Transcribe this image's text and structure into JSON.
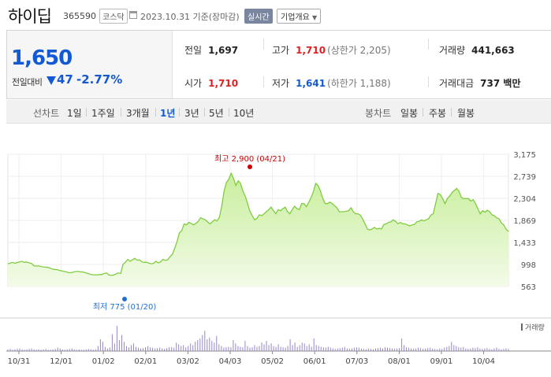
{
  "header": {
    "stock_name": "하이딥",
    "stock_code": "365590",
    "market_badge": "코스닥",
    "date_text": "2023.10.31 기준(장마감)",
    "realtime_label": "실시간",
    "corp_info_label": "기업개요"
  },
  "summary": {
    "price": "1,650",
    "prev_label": "전일대비",
    "change": "47",
    "change_pct": "-2.77%",
    "prev_close": {
      "label": "전일",
      "value": "1,697"
    },
    "high": {
      "label": "고가",
      "value": "1,710",
      "sub": "(상한가 2,205)"
    },
    "volume": {
      "label": "거래량",
      "value": "441,663"
    },
    "open": {
      "label": "시가",
      "value": "1,710"
    },
    "low": {
      "label": "저가",
      "value": "1,641",
      "sub": "(하한가 1,188)"
    },
    "amount": {
      "label": "거래대금",
      "value": "737 백만"
    }
  },
  "periods": {
    "line_label": "선차트",
    "line_items": [
      "1일",
      "1주일",
      "3개월",
      "1년",
      "3년",
      "5년",
      "10년"
    ],
    "selected": "1년",
    "candle_label": "봉차트",
    "candle_items": [
      "일봉",
      "주봉",
      "월봉"
    ]
  },
  "chart_data": {
    "type": "area",
    "y_ticks": [
      "3,175",
      "2,739",
      "2,304",
      "1,869",
      "1,433",
      "998",
      "563"
    ],
    "ylim": [
      563,
      3175
    ],
    "x_ticks": [
      "10/31",
      "12/01",
      "01/02",
      "02/01",
      "03/02",
      "04/03",
      "05/02",
      "06/01",
      "07/03",
      "08/01",
      "09/01",
      "10/04"
    ],
    "max_label": "최고 2,900 (04/21)",
    "min_label": "최저 775 (01/20)",
    "volume_label": "거래량",
    "colors": {
      "line": "#7fcd3f",
      "fill_top": "#c8ee9c",
      "fill_bottom": "#f3fbe8",
      "max": "#cc0000",
      "min": "#1f6fd6"
    },
    "values": [
      1010,
      1025,
      1040,
      1020,
      1035,
      1050,
      1060,
      1040,
      1045,
      1030,
      1020,
      975,
      965,
      970,
      960,
      950,
      945,
      940,
      925,
      905,
      900,
      895,
      880,
      870,
      860,
      850,
      835,
      835,
      850,
      860,
      860,
      850,
      850,
      835,
      820,
      805,
      795,
      795,
      790,
      800,
      800,
      820,
      830,
      790,
      780,
      790,
      810,
      830,
      820,
      1000,
      1040,
      1100,
      1060,
      1090,
      1120,
      1080,
      1090,
      1050,
      1040,
      1040,
      1025,
      1010,
      1020,
      1060,
      1030,
      1050,
      1100,
      1080,
      1090,
      1150,
      1200,
      1320,
      1450,
      1620,
      1670,
      1800,
      1780,
      1830,
      1810,
      1780,
      1810,
      1850,
      1920,
      1900,
      1880,
      1840,
      1800,
      1840,
      1880,
      1860,
      1930,
      2150,
      2450,
      2620,
      2680,
      2800,
      2700,
      2560,
      2650,
      2600,
      2450,
      2350,
      2200,
      2050,
      1960,
      1880,
      1910,
      1980,
      1960,
      2000,
      2040,
      2080,
      2130,
      2060,
      2000,
      2080,
      2060,
      2100,
      2130,
      2040,
      2000,
      2080,
      2150,
      2100,
      2080,
      2200,
      2200,
      2140,
      2220,
      2320,
      2440,
      2600,
      2560,
      2450,
      2300,
      2200,
      2200,
      2230,
      2200,
      2160,
      2120,
      2040,
      2040,
      2040,
      2050,
      2060,
      2120,
      2040,
      2000,
      2000,
      1970,
      1890,
      1800,
      1700,
      1680,
      1700,
      1730,
      1700,
      1710,
      1700,
      1790,
      1800,
      1830,
      1840,
      1880,
      1850,
      1800,
      1830,
      1800,
      1800,
      1780,
      1760,
      1780,
      1790,
      1840,
      1850,
      1880,
      1860,
      1880,
      1900,
      1970,
      2000,
      2200,
      2400,
      2380,
      2300,
      2200,
      2300,
      2350,
      2420,
      2460,
      2500,
      2440,
      2320,
      2300,
      2300,
      2300,
      2250,
      2280,
      2200,
      2100,
      2000,
      2060,
      2030,
      2070,
      2040,
      1980,
      1960,
      1920,
      1900,
      1820,
      1780,
      1697,
      1650
    ],
    "volume_values": [
      4,
      5,
      3,
      4,
      5,
      6,
      4,
      3,
      4,
      5,
      6,
      4,
      3,
      4,
      3,
      4,
      5,
      3,
      3,
      4,
      5,
      8,
      6,
      4,
      3,
      4,
      5,
      6,
      4,
      3,
      4,
      3,
      3,
      4,
      5,
      4,
      3,
      4,
      12,
      28,
      22,
      10,
      6,
      8,
      40,
      18,
      60,
      26,
      38,
      22,
      12,
      9,
      14,
      18,
      10,
      8,
      6,
      7,
      9,
      12,
      9,
      8,
      6,
      7,
      8,
      6,
      5,
      7,
      9,
      10,
      8,
      20,
      16,
      12,
      14,
      9,
      12,
      18,
      14,
      22,
      26,
      30,
      38,
      48,
      28,
      32,
      24,
      20,
      36,
      16,
      12,
      8,
      9,
      10,
      9,
      26,
      18,
      12,
      10,
      9,
      24,
      12,
      8,
      9,
      14,
      10,
      12,
      20,
      16,
      24,
      14,
      18,
      12,
      10,
      16,
      10,
      9,
      8,
      12,
      28,
      14,
      20,
      10,
      14,
      20,
      18,
      12,
      16,
      10,
      30,
      14,
      12,
      10,
      9,
      8,
      10,
      8,
      6,
      5,
      6,
      7,
      8,
      10,
      6,
      5,
      6,
      8,
      9,
      8,
      6,
      5,
      4,
      6,
      5,
      4,
      6,
      7,
      8,
      6,
      9,
      8,
      7,
      6,
      5,
      6,
      7,
      30,
      14,
      9,
      8,
      6,
      5,
      6,
      8,
      7,
      5,
      6,
      7,
      8,
      6,
      5,
      4,
      6,
      5,
      8,
      10,
      12,
      22,
      14,
      12,
      9,
      8,
      10,
      6,
      5,
      6,
      8,
      7,
      9,
      6,
      5,
      6,
      7,
      5,
      4,
      6,
      8,
      5,
      4,
      5,
      6,
      5
    ]
  }
}
